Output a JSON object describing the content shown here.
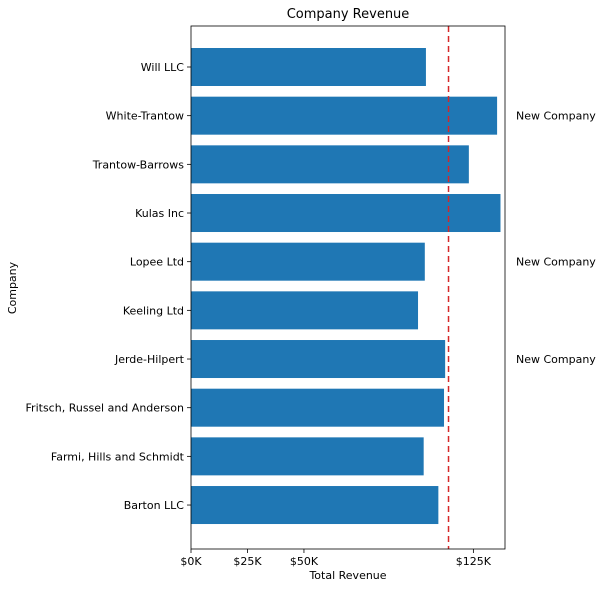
{
  "chart_data": {
    "type": "bar",
    "orientation": "horizontal",
    "title": "Company Revenue",
    "xlabel": "Total Revenue",
    "ylabel": "Company",
    "categories": [
      "Will LLC",
      "White-Trantow",
      "Trantow-Barrows",
      "Kulas Inc",
      "Lopee Ltd",
      "Keeling Ltd",
      "Jerde-Hilpert",
      "Fritsch, Russel and Anderson",
      "Farmi, Hills and Schmidt",
      "Barton LLC"
    ],
    "values": [
      104000,
      135500,
      123000,
      137000,
      103500,
      100500,
      112500,
      112000,
      103000,
      109500
    ],
    "xlim": [
      0,
      139000
    ],
    "xticks": [
      {
        "value": 0,
        "label": "$0K"
      },
      {
        "value": 25000,
        "label": "$25K"
      },
      {
        "value": 50000,
        "label": "$50K"
      },
      {
        "value": 125000,
        "label": "$125K"
      }
    ],
    "reference_line": {
      "value": 114000,
      "style": "dashed",
      "color": "#d62728"
    },
    "annotations": [
      {
        "category": "White-Trantow",
        "text": "New Company"
      },
      {
        "category": "Lopee Ltd",
        "text": "New Company"
      },
      {
        "category": "Jerde-Hilpert",
        "text": "New Company"
      }
    ],
    "bar_color": "#1f77b4",
    "grid": false,
    "legend": "none"
  }
}
